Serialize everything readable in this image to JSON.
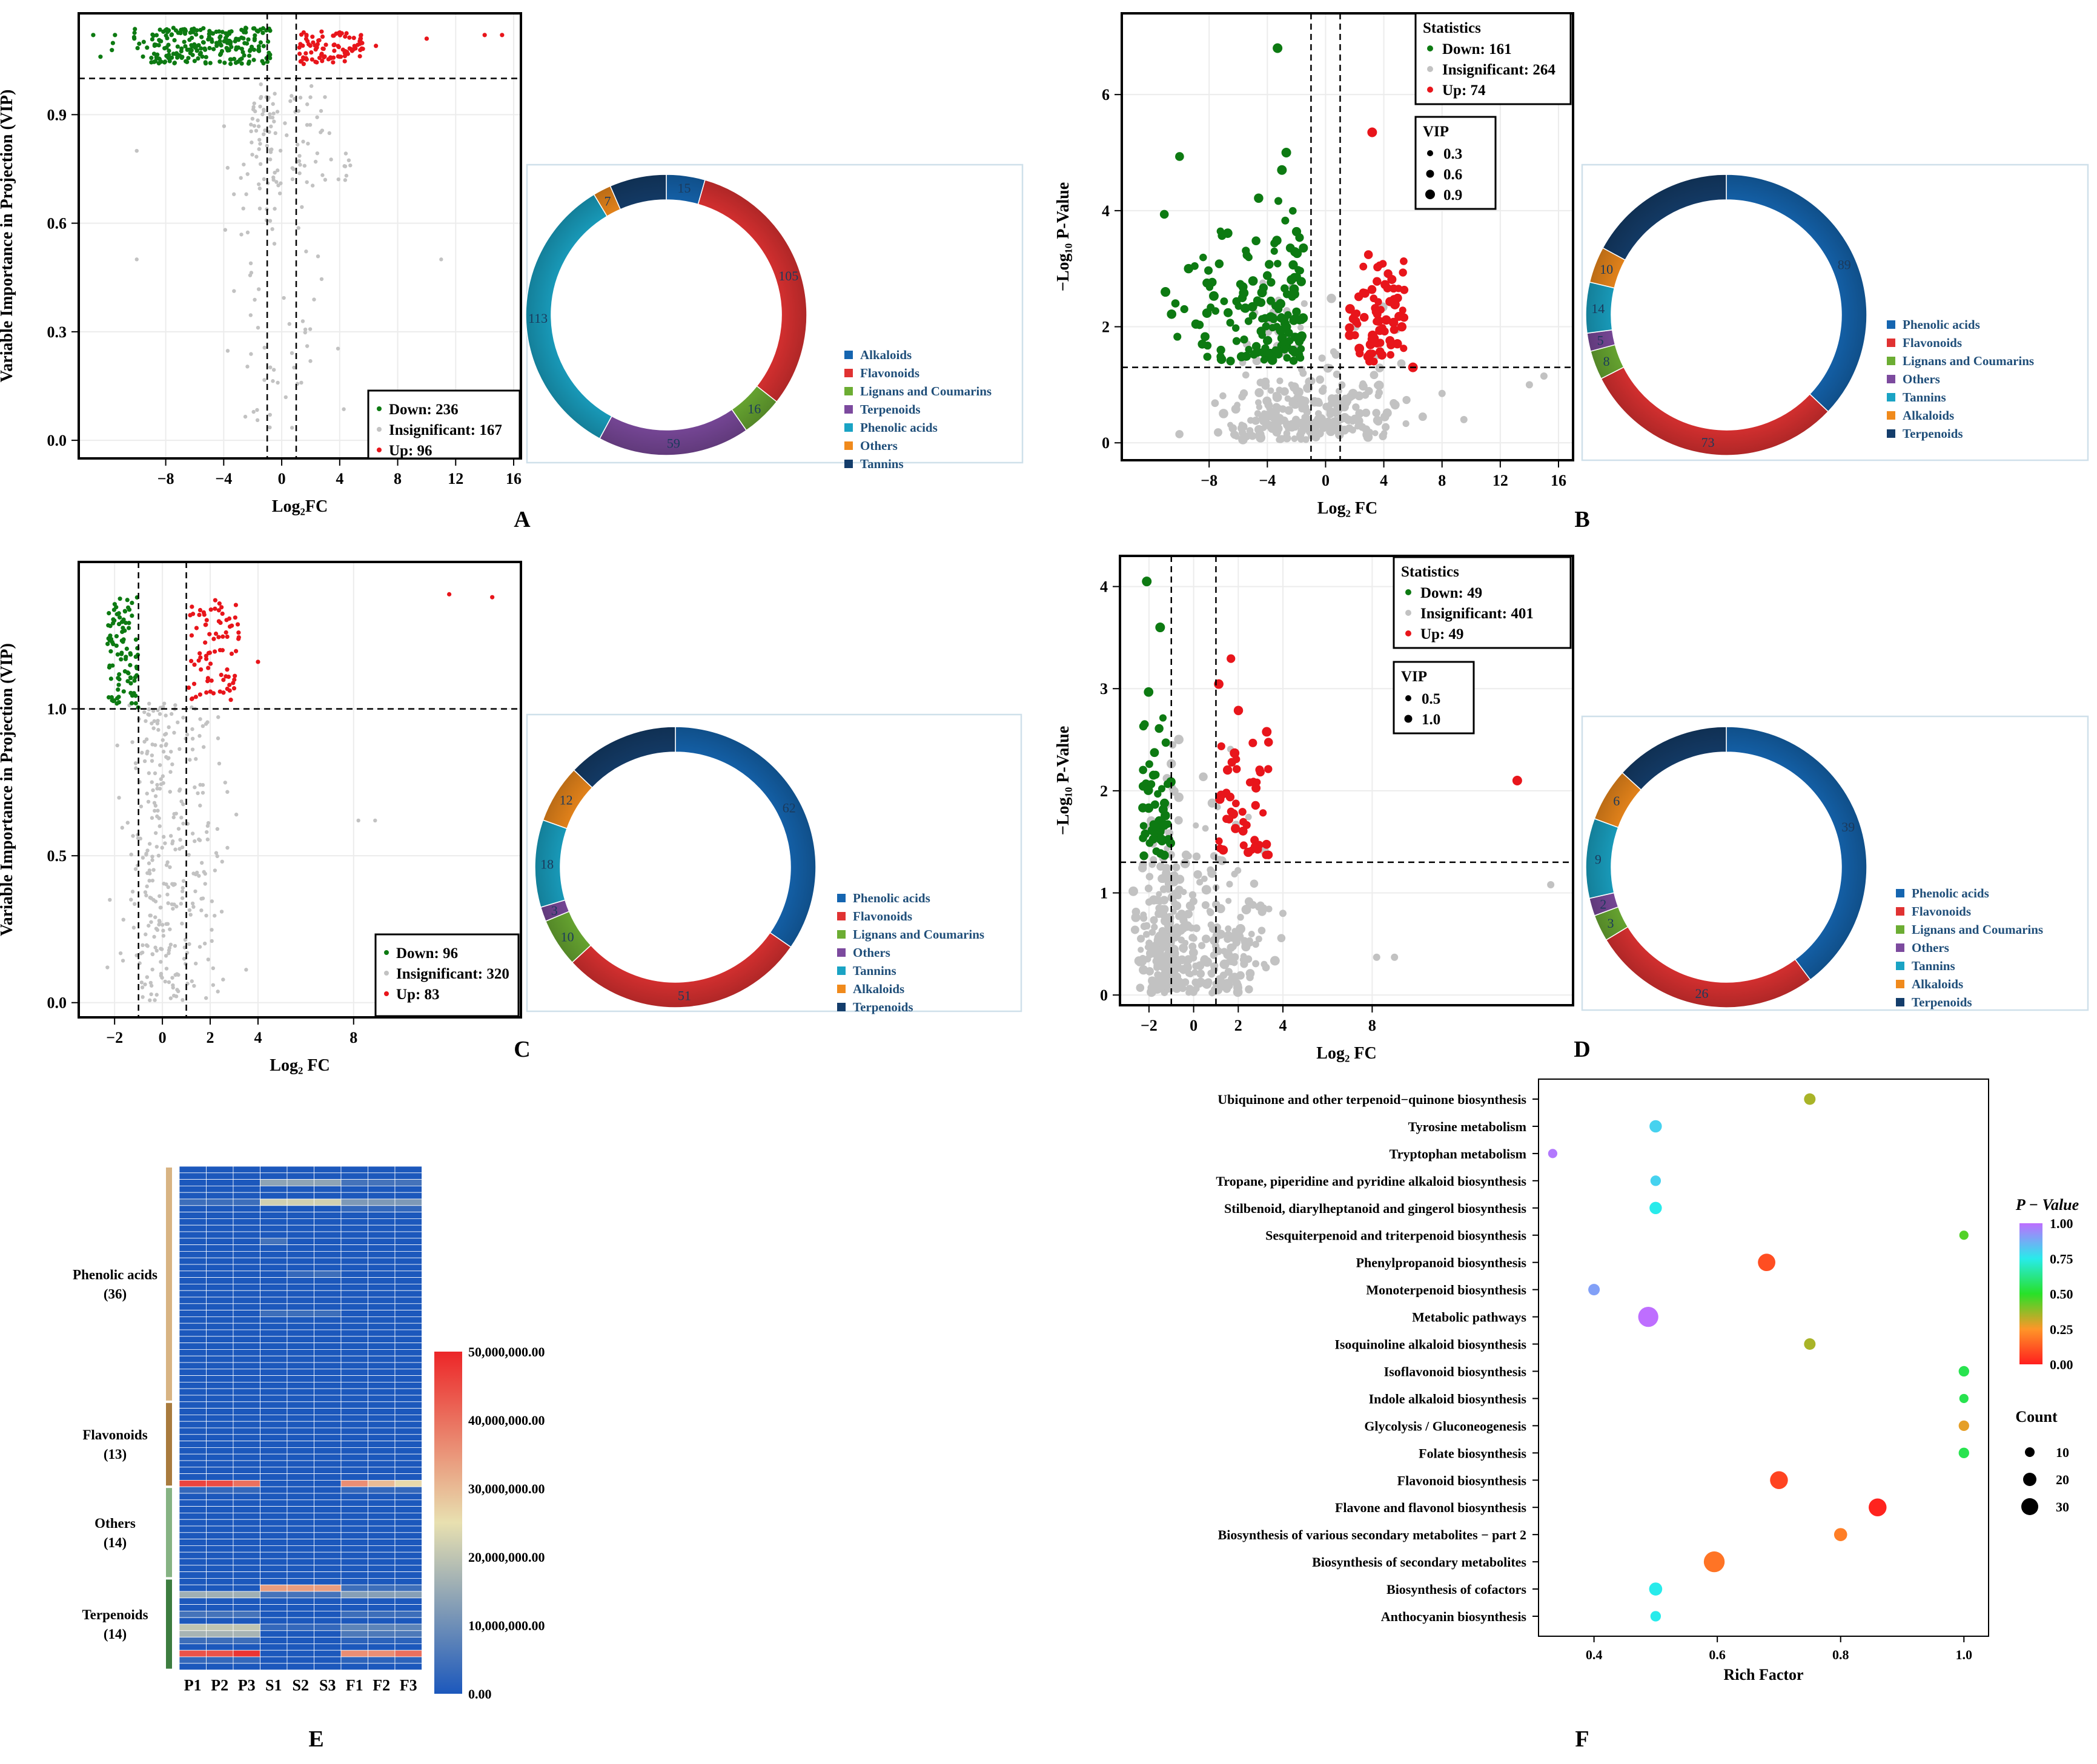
{
  "chart_data": [
    {
      "panel": "A",
      "type": "scatter",
      "xlabel": "Log₂FC",
      "ylabel": "Variable Importance in Projection (VIP)",
      "xlim": [
        -14,
        16.5
      ],
      "ylim": [
        -0.05,
        1.18
      ],
      "xticks": [
        -8,
        -4,
        0,
        4,
        8,
        12,
        16
      ],
      "yticks": [
        0.0,
        0.3,
        0.6,
        0.9
      ],
      "xticklabels": [
        "−8",
        "−4",
        "0",
        "4",
        "8",
        "12",
        "16"
      ],
      "yticklabels": [
        "0.0",
        "0.3",
        "0.6",
        "0.9"
      ],
      "vlines": [
        -1,
        1
      ],
      "hline": 1.0,
      "legend": [
        "Down: 236",
        "Insignificant: 167",
        "Up: 96"
      ],
      "counts": {
        "down": 236,
        "insignificant": 167,
        "up": 96
      }
    },
    {
      "panel": "A-donut",
      "type": "pie",
      "labels": [
        "Alkaloids",
        "Flavonoids",
        "Lignans and Coumarins",
        "Terpenoids",
        "Phenolic acids",
        "Others",
        "Tannins"
      ],
      "values": [
        15,
        105,
        16,
        59,
        113,
        7,
        22
      ],
      "value_labels": [
        "15",
        "105",
        "16",
        "59",
        "113",
        "7",
        ""
      ],
      "colors": [
        "#1565b0",
        "#e03232",
        "#6cad33",
        "#7c4a9e",
        "#1aa3c4",
        "#f08a1c",
        "#143d6b"
      ]
    },
    {
      "panel": "B",
      "type": "scatter",
      "xlabel": "Log₂ FC",
      "ylabel": "−Log₁₀ P-Value",
      "xlim": [
        -14,
        17
      ],
      "ylim": [
        -0.3,
        7.4
      ],
      "xticks": [
        -8,
        -4,
        0,
        4,
        8,
        12,
        16
      ],
      "yticks": [
        0,
        2,
        4,
        6
      ],
      "xticklabels": [
        "−8",
        "−4",
        "0",
        "4",
        "8",
        "12",
        "16"
      ],
      "yticklabels": [
        "0",
        "2",
        "4",
        "6"
      ],
      "vlines": [
        -1,
        1
      ],
      "hline": 1.3,
      "legend_title": "Statistics",
      "legend": [
        "Down: 161",
        "Insignificant: 264",
        "Up: 74"
      ],
      "size_legend_title": "VIP",
      "size_legend": [
        "0.3",
        "0.6",
        "0.9"
      ],
      "counts": {
        "down": 161,
        "insignificant": 264,
        "up": 74
      }
    },
    {
      "panel": "B-donut",
      "type": "pie",
      "labels": [
        "Phenolic acids",
        "Flavonoids",
        "Lignans and Coumarins",
        "Others",
        "Tannins",
        "Alkaloids",
        "Terpenoids"
      ],
      "values": [
        89,
        73,
        8,
        5,
        14,
        10,
        41
      ],
      "value_labels": [
        "89",
        "73",
        "8",
        "5",
        "14",
        "10",
        ""
      ],
      "colors": [
        "#1565b0",
        "#e03232",
        "#6cad33",
        "#7c4a9e",
        "#1aa3c4",
        "#f08a1c",
        "#143d6b"
      ]
    },
    {
      "panel": "C",
      "type": "scatter",
      "xlabel": "Log₂ FC",
      "ylabel": "Variable Importance in Projection (VIP)",
      "xlim": [
        -3.5,
        15
      ],
      "ylim": [
        -0.05,
        1.5
      ],
      "xticks": [
        -2,
        0,
        2,
        4,
        8
      ],
      "yticks": [
        0.0,
        0.5,
        1.0
      ],
      "xticklabels": [
        "−2",
        "0",
        "2",
        "4",
        "8"
      ],
      "yticklabels": [
        "0.0",
        "0.5",
        "1.0"
      ],
      "vlines": [
        -1,
        1
      ],
      "hline": 1.0,
      "legend": [
        "Down: 96",
        "Insignificant: 320",
        "Up: 83"
      ],
      "counts": {
        "down": 96,
        "insignificant": 320,
        "up": 83
      }
    },
    {
      "panel": "C-donut",
      "type": "pie",
      "labels": [
        "Phenolic acids",
        "Flavonoids",
        "Lignans and Coumarins",
        "Others",
        "Tannins",
        "Alkaloids",
        "Terpenoids"
      ],
      "values": [
        62,
        51,
        10,
        3,
        18,
        12,
        23
      ],
      "value_labels": [
        "62",
        "51",
        "10",
        "3",
        "18",
        "12",
        ""
      ],
      "colors": [
        "#1565b0",
        "#e03232",
        "#6cad33",
        "#7c4a9e",
        "#1aa3c4",
        "#f08a1c",
        "#143d6b"
      ]
    },
    {
      "panel": "D",
      "type": "scatter",
      "xlabel": "Log₂ FC",
      "ylabel": "−Log₁₀ P-Value",
      "xlim": [
        -3.3,
        17
      ],
      "ylim": [
        -0.1,
        4.3
      ],
      "xticks": [
        -2,
        0,
        2,
        4,
        8
      ],
      "yticks": [
        0,
        1,
        2,
        3,
        4
      ],
      "xticklabels": [
        "−2",
        "0",
        "2",
        "4",
        "8"
      ],
      "yticklabels": [
        "0",
        "1",
        "2",
        "3",
        "4"
      ],
      "vlines": [
        -1,
        1
      ],
      "hline": 1.3,
      "legend_title": "Statistics",
      "legend": [
        "Down: 49",
        "Insignificant: 401",
        "Up: 49"
      ],
      "size_legend_title": "VIP",
      "size_legend": [
        "0.5",
        "1.0"
      ],
      "counts": {
        "down": 49,
        "insignificant": 401,
        "up": 49
      }
    },
    {
      "panel": "D-donut",
      "type": "pie",
      "labels": [
        "Phenolic acids",
        "Flavonoids",
        "Lignans and Coumarins",
        "Others",
        "Tannins",
        "Alkaloids",
        "Terpenoids"
      ],
      "values": [
        39,
        26,
        3,
        2,
        9,
        6,
        13
      ],
      "value_labels": [
        "39",
        "26",
        "3",
        "2",
        "9",
        "6",
        ""
      ],
      "colors": [
        "#1565b0",
        "#e03232",
        "#6cad33",
        "#7c4a9e",
        "#1aa3c4",
        "#f08a1c",
        "#143d6b"
      ]
    },
    {
      "panel": "E",
      "type": "heatmap",
      "columns": [
        "P1",
        "P2",
        "P3",
        "S1",
        "S2",
        "S3",
        "F1",
        "F2",
        "F3"
      ],
      "groups": [
        {
          "name": "Phenolic acids",
          "count": "(36)",
          "rows": 36,
          "color": "#d8b483"
        },
        {
          "name": "Flavonoids",
          "count": "(13)",
          "rows": 13,
          "color": "#a97b3e"
        },
        {
          "name": "Others",
          "count": "(14)",
          "rows": 14,
          "color": "#86b383"
        },
        {
          "name": "Terpenoids",
          "count": "(14)",
          "rows": 14,
          "color": "#3d7d3f"
        }
      ],
      "highlights": [
        {
          "row": 2,
          "values": [
            0,
            0,
            0,
            14,
            14,
            14,
            5,
            5,
            5
          ]
        },
        {
          "row": 5,
          "values": [
            4,
            4,
            4,
            22,
            22,
            22,
            12,
            12,
            12
          ]
        },
        {
          "row": 6,
          "values": [
            0,
            0,
            0,
            0,
            0,
            0,
            3,
            3,
            3
          ]
        },
        {
          "row": 11,
          "values": [
            0,
            0,
            0,
            5,
            0,
            0,
            0,
            0,
            0
          ]
        },
        {
          "row": 16,
          "values": [
            0,
            0,
            0,
            0,
            3,
            4,
            0,
            0,
            0
          ]
        },
        {
          "row": 22,
          "values": [
            0,
            0,
            0,
            4,
            4,
            4,
            0,
            0,
            0
          ]
        },
        {
          "row": 48,
          "values": [
            46,
            45,
            40,
            0,
            0,
            0,
            36,
            30,
            26
          ]
        },
        {
          "row": 49,
          "values": [
            3,
            3,
            3,
            0,
            0,
            0,
            3,
            3,
            3
          ]
        },
        {
          "row": 64,
          "values": [
            0,
            0,
            0,
            34,
            34,
            34,
            4,
            4,
            4
          ]
        },
        {
          "row": 65,
          "values": [
            16,
            16,
            16,
            5,
            5,
            5,
            13,
            13,
            13
          ]
        },
        {
          "row": 68,
          "values": [
            5,
            5,
            5,
            0,
            0,
            0,
            4,
            4,
            4
          ]
        },
        {
          "row": 70,
          "values": [
            20,
            20,
            20,
            3,
            3,
            3,
            8,
            8,
            8
          ]
        },
        {
          "row": 71,
          "values": [
            17,
            17,
            17,
            0,
            0,
            0,
            6,
            6,
            6
          ]
        },
        {
          "row": 72,
          "values": [
            4,
            4,
            4,
            0,
            0,
            0,
            2,
            2,
            2
          ]
        },
        {
          "row": 74,
          "values": [
            44,
            44,
            48,
            0,
            0,
            0,
            36,
            36,
            40
          ]
        },
        {
          "row": 75,
          "values": [
            3,
            3,
            3,
            0,
            0,
            0,
            2,
            2,
            2
          ]
        }
      ],
      "colorbar_ticks": [
        "0.00",
        "10,000,000.00",
        "20,000,000.00",
        "30,000,000.00",
        "40,000,000.00",
        "50,000,000.00"
      ],
      "range_millions": [
        0,
        50
      ]
    },
    {
      "panel": "F",
      "type": "scatter",
      "xlabel": "Rich Factor",
      "xlim": [
        0.31,
        1.04
      ],
      "xticks": [
        0.4,
        0.6,
        0.8,
        1.0
      ],
      "xticklabels": [
        "0.4",
        "0.6",
        "0.8",
        "1.0"
      ],
      "pathways": [
        {
          "name": "Ubiquinone and other terpenoid−quinone biosynthesis",
          "rich": 0.75,
          "p": 0.35,
          "count": 3
        },
        {
          "name": "Tyrosine metabolism",
          "rich": 0.5,
          "p": 0.8,
          "count": 4
        },
        {
          "name": "Tryptophan metabolism",
          "rich": 0.333,
          "p": 0.98,
          "count": 1
        },
        {
          "name": "Tropane, piperidine and pyridine alkaloid biosynthesis",
          "rich": 0.5,
          "p": 0.8,
          "count": 2
        },
        {
          "name": "Stilbenoid, diarylheptanoid and gingerol biosynthesis",
          "rich": 0.5,
          "p": 0.75,
          "count": 4
        },
        {
          "name": "Sesquiterpenoid and triterpenoid biosynthesis",
          "rich": 1.0,
          "p": 0.45,
          "count": 1
        },
        {
          "name": "Phenylpropanoid biosynthesis",
          "rich": 0.68,
          "p": 0.1,
          "count": 13
        },
        {
          "name": "Monoterpenoid biosynthesis",
          "rich": 0.4,
          "p": 0.9,
          "count": 3
        },
        {
          "name": "Metabolic pathways",
          "rich": 0.488,
          "p": 1.0,
          "count": 20
        },
        {
          "name": "Isoquinoline alkaloid biosynthesis",
          "rich": 0.75,
          "p": 0.35,
          "count": 3
        },
        {
          "name": "Isoflavonoid biosynthesis",
          "rich": 1.0,
          "p": 0.55,
          "count": 2
        },
        {
          "name": "Indole alkaloid biosynthesis",
          "rich": 1.0,
          "p": 0.55,
          "count": 1
        },
        {
          "name": "Glycolysis / Gluconeogenesis",
          "rich": 1.0,
          "p": 0.28,
          "count": 2
        },
        {
          "name": "Folate biosynthesis",
          "rich": 1.0,
          "p": 0.55,
          "count": 2
        },
        {
          "name": "Flavonoid biosynthesis",
          "rich": 0.7,
          "p": 0.08,
          "count": 14
        },
        {
          "name": "Flavone and flavonol biosynthesis",
          "rich": 0.86,
          "p": 0.01,
          "count": 14
        },
        {
          "name": "Biosynthesis of various secondary metabolites − part 2",
          "rich": 0.8,
          "p": 0.2,
          "count": 5
        },
        {
          "name": "Biosynthesis of secondary metabolites",
          "rich": 0.595,
          "p": 0.18,
          "count": 22
        },
        {
          "name": "Biosynthesis of cofactors",
          "rich": 0.5,
          "p": 0.75,
          "count": 5
        },
        {
          "name": "Anthocyanin biosynthesis",
          "rich": 0.5,
          "p": 0.75,
          "count": 2
        }
      ],
      "colorbar_title": "P − Value",
      "colorbar_ticks": [
        "1.00",
        "0.75",
        "0.50",
        "0.25",
        "0.00"
      ],
      "size_title": "Count",
      "size_legend": [
        "10",
        "20",
        "30"
      ]
    }
  ],
  "panel_letters": [
    "A",
    "B",
    "C",
    "D",
    "E",
    "F"
  ]
}
